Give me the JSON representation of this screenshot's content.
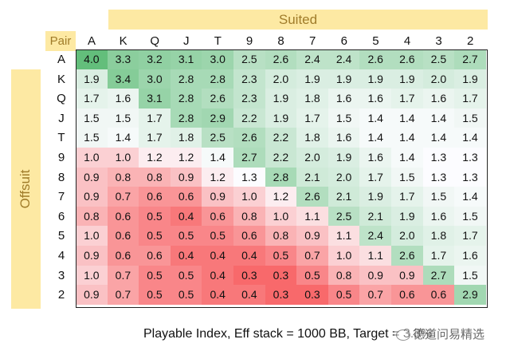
{
  "chart_data": {
    "type": "heatmap",
    "title": "",
    "suited_label": "Suited",
    "offsuit_label": "Offsuit",
    "corner_label": "Pair",
    "columns": [
      "A",
      "K",
      "Q",
      "J",
      "T",
      "9",
      "8",
      "7",
      "6",
      "5",
      "4",
      "3",
      "2"
    ],
    "rows": [
      "A",
      "K",
      "Q",
      "J",
      "T",
      "9",
      "8",
      "7",
      "6",
      "5",
      "4",
      "3",
      "2"
    ],
    "values": [
      [
        "4.0",
        "3.3",
        "3.2",
        "3.1",
        "3.0",
        "2.5",
        "2.6",
        "2.4",
        "2.4",
        "2.6",
        "2.6",
        "2.5",
        "2.7"
      ],
      [
        "1.9",
        "3.4",
        "3.0",
        "2.8",
        "2.8",
        "2.3",
        "2.0",
        "1.9",
        "1.9",
        "1.9",
        "1.9",
        "2.0",
        "1.9"
      ],
      [
        "1.7",
        "1.6",
        "3.1",
        "2.8",
        "2.6",
        "2.3",
        "1.9",
        "1.8",
        "1.6",
        "1.6",
        "1.7",
        "1.6",
        "1.7"
      ],
      [
        "1.5",
        "1.5",
        "1.7",
        "2.8",
        "2.9",
        "2.2",
        "1.9",
        "1.7",
        "1.5",
        "1.4",
        "1.4",
        "1.4",
        "1.5"
      ],
      [
        "1.5",
        "1.4",
        "1.7",
        "1.8",
        "2.5",
        "2.6",
        "2.2",
        "1.8",
        "1.6",
        "1.4",
        "1.4",
        "1.4",
        "1.4"
      ],
      [
        "1.0",
        "1.0",
        "1.2",
        "1.2",
        "1.4",
        "2.7",
        "2.2",
        "2.0",
        "1.9",
        "1.6",
        "1.4",
        "1.3",
        "1.3"
      ],
      [
        "0.9",
        "0.8",
        "0.8",
        "0.9",
        "1.2",
        "1.3",
        "2.8",
        "2.1",
        "2.0",
        "1.7",
        "1.5",
        "1.3",
        "1.3"
      ],
      [
        "0.9",
        "0.7",
        "0.6",
        "0.6",
        "0.9",
        "1.0",
        "1.2",
        "2.6",
        "2.1",
        "1.9",
        "1.7",
        "1.5",
        "1.4"
      ],
      [
        "0.8",
        "0.6",
        "0.5",
        "0.4",
        "0.6",
        "0.8",
        "1.0",
        "1.1",
        "2.5",
        "2.1",
        "1.9",
        "1.6",
        "1.5"
      ],
      [
        "1.0",
        "0.6",
        "0.5",
        "0.5",
        "0.5",
        "0.6",
        "0.8",
        "0.9",
        "1.1",
        "2.4",
        "2.0",
        "1.8",
        "1.7"
      ],
      [
        "0.9",
        "0.6",
        "0.6",
        "0.4",
        "0.4",
        "0.4",
        "0.5",
        "0.7",
        "1.0",
        "1.1",
        "2.6",
        "1.7",
        "1.6"
      ],
      [
        "1.0",
        "0.7",
        "0.5",
        "0.5",
        "0.4",
        "0.3",
        "0.3",
        "0.5",
        "0.8",
        "0.9",
        "0.9",
        "2.7",
        "1.5"
      ],
      [
        "0.9",
        "0.7",
        "0.5",
        "0.5",
        "0.4",
        "0.4",
        "0.3",
        "0.3",
        "0.5",
        "0.7",
        "0.6",
        "0.6",
        "2.9"
      ]
    ],
    "color_scale": {
      "low": "#f8696b",
      "mid": "#fcfcff",
      "high": "#63be7b",
      "mid_value": 1.3
    }
  },
  "footer": {
    "caption": "Playable Index, Eff stack = 1000 BB, Target = 3.3%",
    "watermark": "德道问易精选"
  }
}
